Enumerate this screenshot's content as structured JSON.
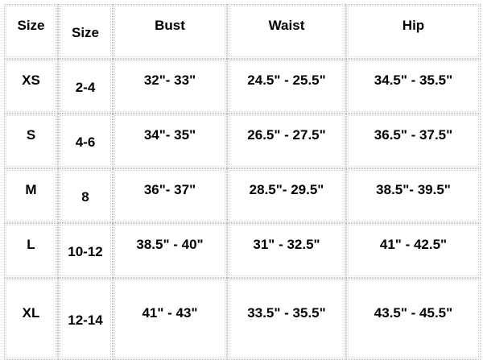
{
  "headers": [
    "Size",
    "Size",
    "Bust",
    "Waist",
    "Hip"
  ],
  "rows": [
    [
      "XS",
      "2-4",
      "32\"- 33\"",
      "24.5\" - 25.5\"",
      "34.5\" - 35.5\""
    ],
    [
      "S",
      "4-6",
      "34\"- 35\"",
      "26.5\" - 27.5\"",
      "36.5\" - 37.5\""
    ],
    [
      "M",
      "8",
      "36\"- 37\"",
      "28.5\"- 29.5\"",
      "38.5\"- 39.5\""
    ],
    [
      "L",
      "10-12",
      "38.5\" - 40\"",
      "31\" - 32.5\"",
      "41\" - 42.5\""
    ],
    [
      "XL",
      "12-14",
      "41\" - 43\"",
      "33.5\" - 35.5\"",
      "43.5\" - 45.5\""
    ]
  ]
}
